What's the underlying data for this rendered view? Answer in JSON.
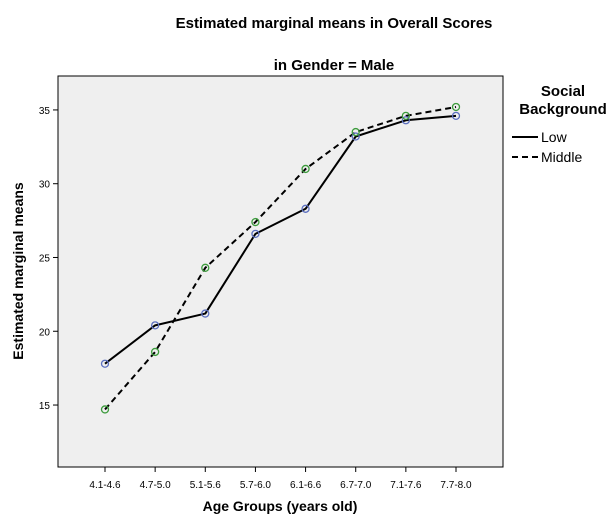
{
  "chart_data": {
    "type": "line",
    "title": "Estimated marginal means in Overall Scores",
    "subtitle": "in Gender = Male",
    "xlabel": "Age Groups (years old)",
    "ylabel": "Estimated marginal means",
    "categories": [
      "4.1-4.6",
      "4.7-5.0",
      "5.1-5.6",
      "5.7-6.0",
      "6.1-6.6",
      "6.7-7.0",
      "7.1-7.6",
      "7.7-8.0"
    ],
    "ylim": [
      10.8,
      37.3
    ],
    "yticks": [
      15,
      20,
      25,
      30,
      35
    ],
    "grid": false,
    "plot_background": "#efefef",
    "legend": {
      "title": "Social Background",
      "placement": "right-top"
    },
    "series": [
      {
        "name": "Low",
        "line_style": "solid",
        "marker_color": "#5b6fbf",
        "values": [
          17.8,
          20.4,
          21.2,
          26.6,
          28.3,
          33.2,
          34.3,
          34.6
        ]
      },
      {
        "name": "Middle",
        "line_style": "dashed",
        "marker_color": "#3c9b3c",
        "values": [
          14.7,
          18.6,
          24.3,
          27.4,
          31.0,
          33.5,
          34.6,
          35.2
        ]
      }
    ]
  }
}
